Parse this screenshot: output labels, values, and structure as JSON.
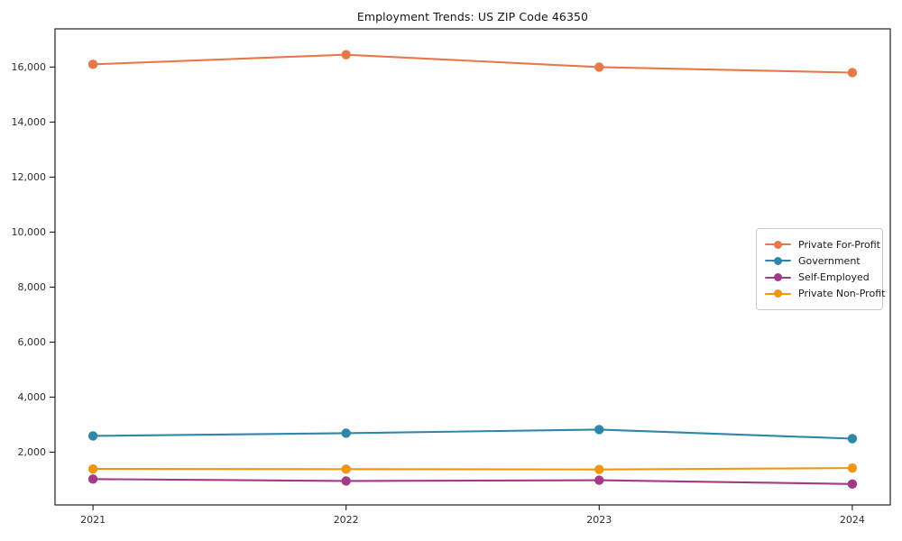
{
  "chart_data": {
    "type": "line",
    "title": "Employment Trends: US ZIP Code 46350",
    "x": [
      2021,
      2022,
      2023,
      2024
    ],
    "x_tick_labels": [
      "2021",
      "2022",
      "2023",
      "2024"
    ],
    "series": [
      {
        "name": "Private For-Profit",
        "color": "#E8784A",
        "values": [
          16100,
          16450,
          16000,
          15800
        ]
      },
      {
        "name": "Government",
        "color": "#2E86A8",
        "values": [
          2590,
          2690,
          2820,
          2490
        ]
      },
      {
        "name": "Self-Employed",
        "color": "#A23B85",
        "values": [
          1020,
          950,
          980,
          840
        ]
      },
      {
        "name": "Private Non-Profit",
        "color": "#F0960F",
        "values": [
          1390,
          1380,
          1370,
          1420
        ]
      }
    ],
    "yticks": [
      2000,
      4000,
      6000,
      8000,
      10000,
      12000,
      14000,
      16000
    ],
    "ytick_labels": [
      "2,000",
      "4,000",
      "6,000",
      "8,000",
      "10,000",
      "12,000",
      "14,000",
      "16,000"
    ],
    "xlim": [
      2020.85,
      2024.15
    ],
    "ylim": [
      80,
      17390
    ],
    "grid": false,
    "legend_position": "center-right",
    "axis_color": "#1f1f1f",
    "tick_label_color": "#2e2e2e",
    "background": "#ffffff",
    "xlabel": "",
    "ylabel": ""
  }
}
